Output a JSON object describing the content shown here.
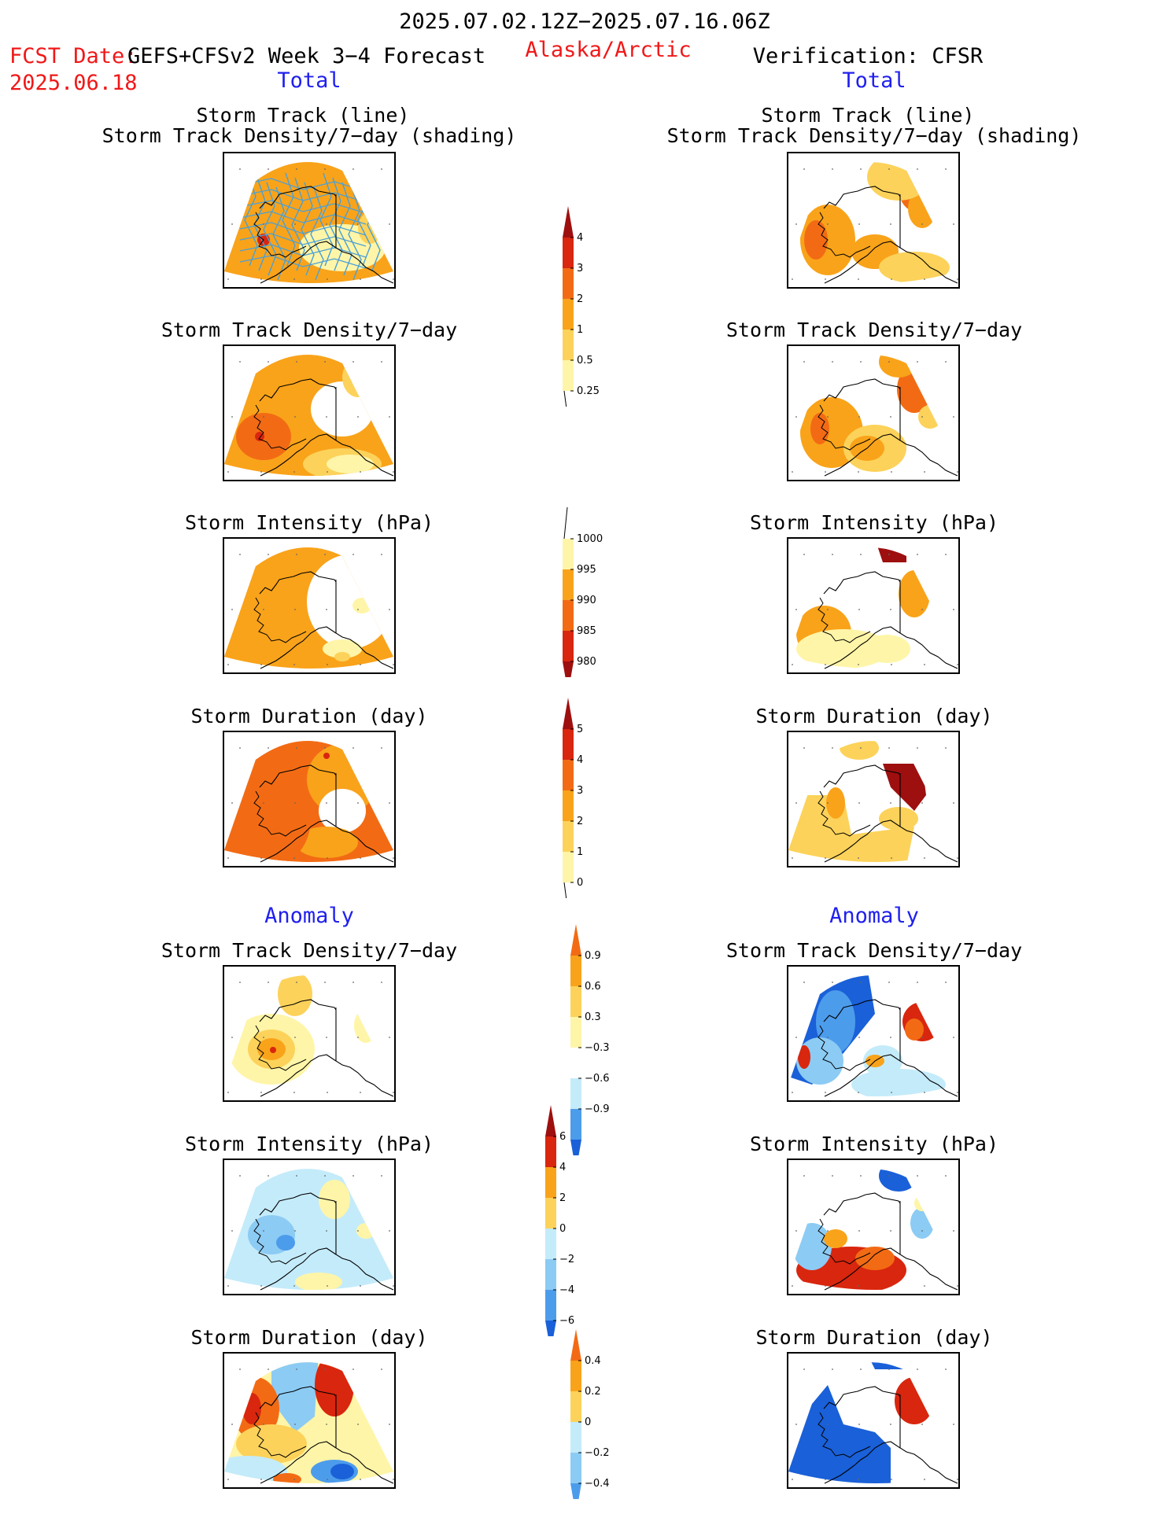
{
  "header": {
    "date_range": "2025.07.02.12Z−2025.07.16.06Z",
    "fcst_label": "FCST Date:",
    "model": "GEFS+CFSv2 Week 3−4 Forecast",
    "fcst_date": "2025.06.18",
    "region": "Alaska/Arctic",
    "verification": "Verification: CFSR",
    "left_total": "Total",
    "right_total": "Total",
    "left_anomaly": "Anomaly",
    "right_anomaly": "Anomaly"
  },
  "titles": {
    "track_line": "Storm Track (line)",
    "track_shading": "Storm Track Density/7−day (shading)",
    "density": "Storm Track Density/7−day",
    "intensity": "Storm Intensity (hPa)",
    "duration": "Storm Duration (day)"
  },
  "colors": {
    "c1": "#fff5a8",
    "c2": "#fcd25a",
    "c3": "#f9a31a",
    "c4": "#f26b14",
    "c5": "#d9260e",
    "c6": "#9e0f0f",
    "b1": "#c4ebfa",
    "b2": "#8ccbf4",
    "b3": "#4c9cec",
    "b4": "#1a60d8",
    "track": "#4aa0d6"
  },
  "chart_data": [
    {
      "type": "heatmap",
      "name": "density_total_colorbar",
      "levels": [
        "0.25",
        "0.5",
        "1",
        "2",
        "3",
        "4"
      ]
    },
    {
      "type": "heatmap",
      "name": "intensity_total_colorbar",
      "levels": [
        "1000",
        "995",
        "990",
        "985",
        "980"
      ]
    },
    {
      "type": "heatmap",
      "name": "duration_total_colorbar",
      "levels": [
        "0",
        "1",
        "2",
        "3",
        "4",
        "5"
      ]
    },
    {
      "type": "heatmap",
      "name": "density_anomaly_colorbar",
      "levels": [
        "0.9",
        "0.6",
        "0.3",
        "−0.3",
        "−0.6",
        "−0.9"
      ]
    },
    {
      "type": "heatmap",
      "name": "intensity_anomaly_colorbar",
      "levels": [
        "6",
        "4",
        "2",
        "0",
        "−2",
        "−4",
        "−6"
      ]
    },
    {
      "type": "heatmap",
      "name": "duration_anomaly_colorbar",
      "levels": [
        "0.4",
        "0.2",
        "0",
        "−0.2",
        "−0.4"
      ]
    }
  ]
}
